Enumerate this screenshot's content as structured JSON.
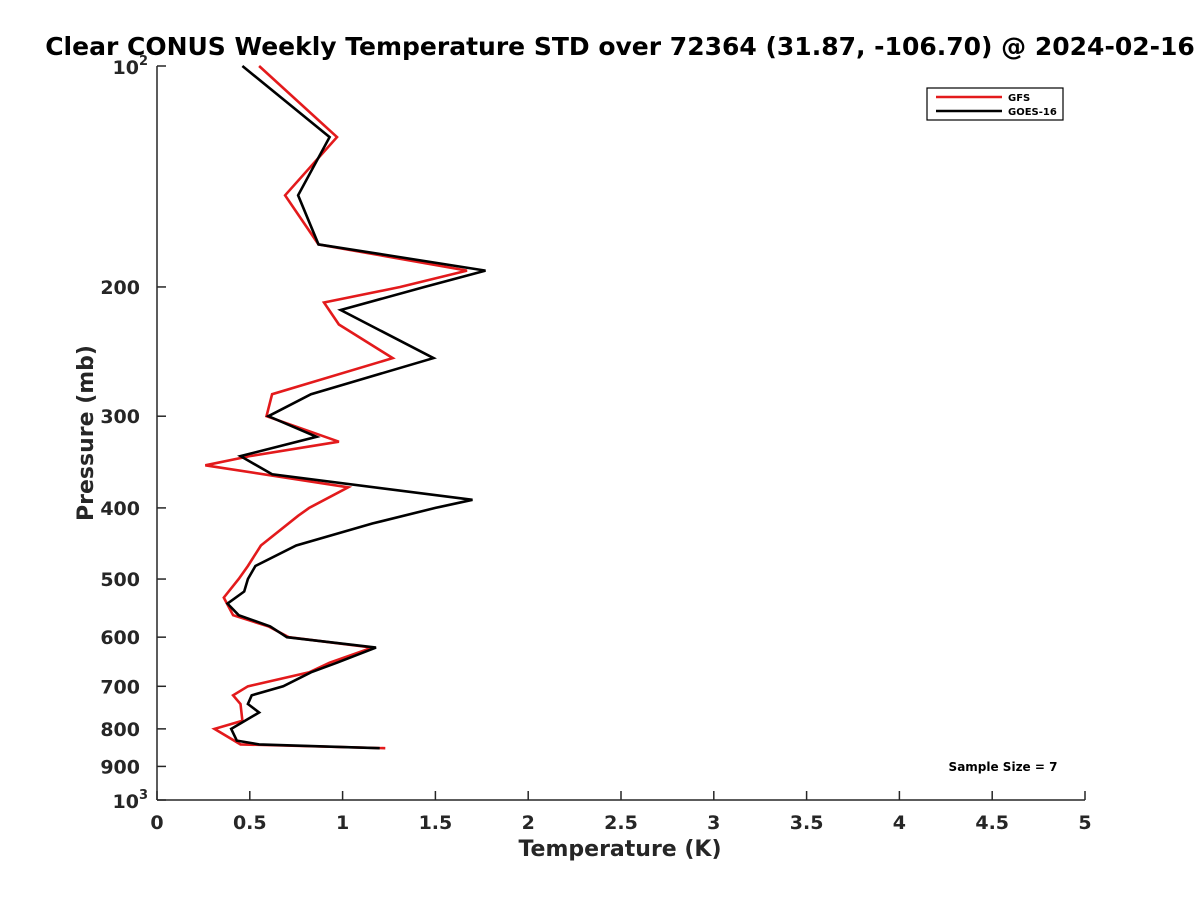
{
  "chart_data": {
    "type": "line",
    "title": "Clear CONUS Weekly Temperature STD over 72364 (31.87, -106.70) @ 2024-02-16",
    "xlabel": "Temperature (K)",
    "ylabel": "Pressure (mb)",
    "xlim": [
      0,
      5
    ],
    "ylim": [
      100,
      1000
    ],
    "y_scale": "log",
    "y_reversed": true,
    "x_ticks": [
      "0",
      "0.5",
      "1",
      "1.5",
      "2",
      "2.5",
      "3",
      "3.5",
      "4",
      "4.5",
      "5"
    ],
    "y_ticks": [
      {
        "value": 100,
        "base": "10",
        "exp": "2"
      },
      {
        "value": 200,
        "label": "200"
      },
      {
        "value": 300,
        "label": "300"
      },
      {
        "value": 400,
        "label": "400"
      },
      {
        "value": 500,
        "label": "500"
      },
      {
        "value": 600,
        "label": "600"
      },
      {
        "value": 700,
        "label": "700"
      },
      {
        "value": 800,
        "label": "800"
      },
      {
        "value": 900,
        "label": "900"
      },
      {
        "value": 1000,
        "base": "10",
        "exp": "3"
      }
    ],
    "legend_placement": "top-right",
    "grid": false,
    "annotation": "Sample Size = 7",
    "series": [
      {
        "name": "GFS",
        "color": "#e31a1c",
        "points": [
          [
            0.55,
            100
          ],
          [
            0.97,
            125
          ],
          [
            0.69,
            150
          ],
          [
            0.87,
            175
          ],
          [
            1.67,
            190
          ],
          [
            1.31,
            200
          ],
          [
            0.9,
            210
          ],
          [
            0.98,
            225
          ],
          [
            1.27,
            250
          ],
          [
            0.62,
            280
          ],
          [
            0.59,
            300
          ],
          [
            0.98,
            325
          ],
          [
            0.5,
            340
          ],
          [
            0.26,
            350
          ],
          [
            1.03,
            375
          ],
          [
            0.82,
            400
          ],
          [
            0.76,
            410
          ],
          [
            0.56,
            450
          ],
          [
            0.49,
            480
          ],
          [
            0.44,
            500
          ],
          [
            0.36,
            530
          ],
          [
            0.41,
            560
          ],
          [
            0.6,
            580
          ],
          [
            0.71,
            600
          ],
          [
            1.16,
            620
          ],
          [
            0.93,
            650
          ],
          [
            0.82,
            670
          ],
          [
            0.49,
            700
          ],
          [
            0.41,
            720
          ],
          [
            0.45,
            740
          ],
          [
            0.46,
            780
          ],
          [
            0.31,
            800
          ],
          [
            0.45,
            840
          ],
          [
            1.23,
            850
          ]
        ]
      },
      {
        "name": "GOES-16",
        "color": "#000000",
        "points": [
          [
            0.46,
            100
          ],
          [
            0.93,
            125
          ],
          [
            0.76,
            150
          ],
          [
            0.87,
            175
          ],
          [
            1.77,
            190
          ],
          [
            1.44,
            200
          ],
          [
            0.99,
            215
          ],
          [
            1.49,
            250
          ],
          [
            0.83,
            280
          ],
          [
            0.6,
            300
          ],
          [
            0.86,
            320
          ],
          [
            0.45,
            340
          ],
          [
            0.62,
            360
          ],
          [
            1.7,
            390
          ],
          [
            1.5,
            400
          ],
          [
            1.16,
            420
          ],
          [
            0.75,
            450
          ],
          [
            0.53,
            480
          ],
          [
            0.49,
            500
          ],
          [
            0.47,
            520
          ],
          [
            0.38,
            540
          ],
          [
            0.44,
            560
          ],
          [
            0.61,
            580
          ],
          [
            0.7,
            600
          ],
          [
            1.18,
            620
          ],
          [
            0.97,
            650
          ],
          [
            0.83,
            670
          ],
          [
            0.68,
            700
          ],
          [
            0.51,
            720
          ],
          [
            0.49,
            740
          ],
          [
            0.55,
            760
          ],
          [
            0.4,
            800
          ],
          [
            0.43,
            830
          ],
          [
            0.55,
            840
          ],
          [
            1.2,
            850
          ]
        ]
      }
    ]
  }
}
